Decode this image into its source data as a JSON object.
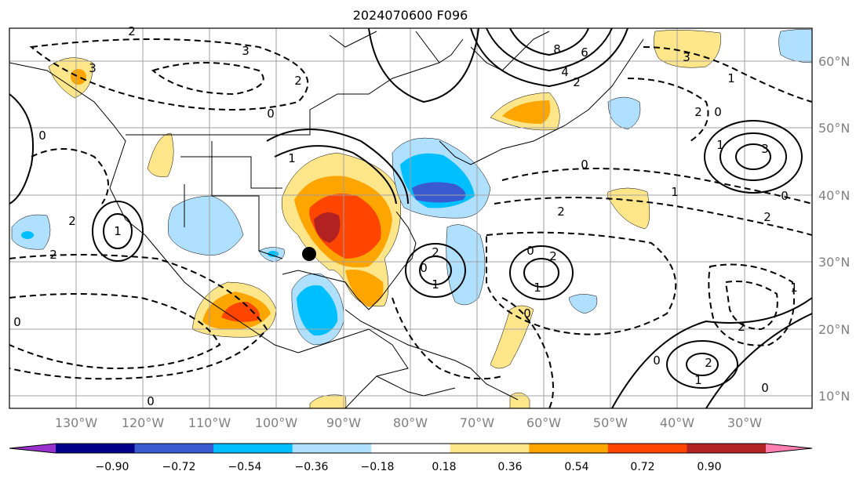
{
  "title": "2024070600 F096",
  "lon_labels": [
    "130°W",
    "120°W",
    "110°W",
    "100°W",
    "90°W",
    "80°W",
    "70°W",
    "60°W",
    "50°W",
    "40°W",
    "30°W"
  ],
  "lat_labels": [
    "60°N",
    "50°N",
    "40°N",
    "30°N",
    "20°N",
    "10°N"
  ],
  "colorbar": {
    "ticks": [
      "−0.90",
      "−0.72",
      "−0.54",
      "−0.36",
      "−0.18",
      "0.18",
      "0.36",
      "0.54",
      "0.72",
      "0.90"
    ],
    "colors": [
      "#9932cc",
      "#00008b",
      "#3a5bd0",
      "#00bfff",
      "#b0e0ff",
      "#ffffff",
      "#ffe68a",
      "#ffa500",
      "#ff4500",
      "#b22222",
      "#ff80b0"
    ]
  },
  "contour_labels": [
    "2",
    "3",
    "3",
    "2",
    "0",
    "0",
    "1",
    "2",
    "2",
    "8",
    "6",
    "4",
    "2",
    "0",
    "1",
    "2",
    "0",
    "3",
    "1",
    "0",
    "1",
    "2",
    "2",
    "1",
    "0",
    "2",
    "2",
    "0",
    "0",
    "1",
    "1",
    "2",
    "3",
    "0",
    "0",
    "1",
    "0",
    "0",
    "1",
    "2"
  ],
  "marker": "storm-position-dot"
}
